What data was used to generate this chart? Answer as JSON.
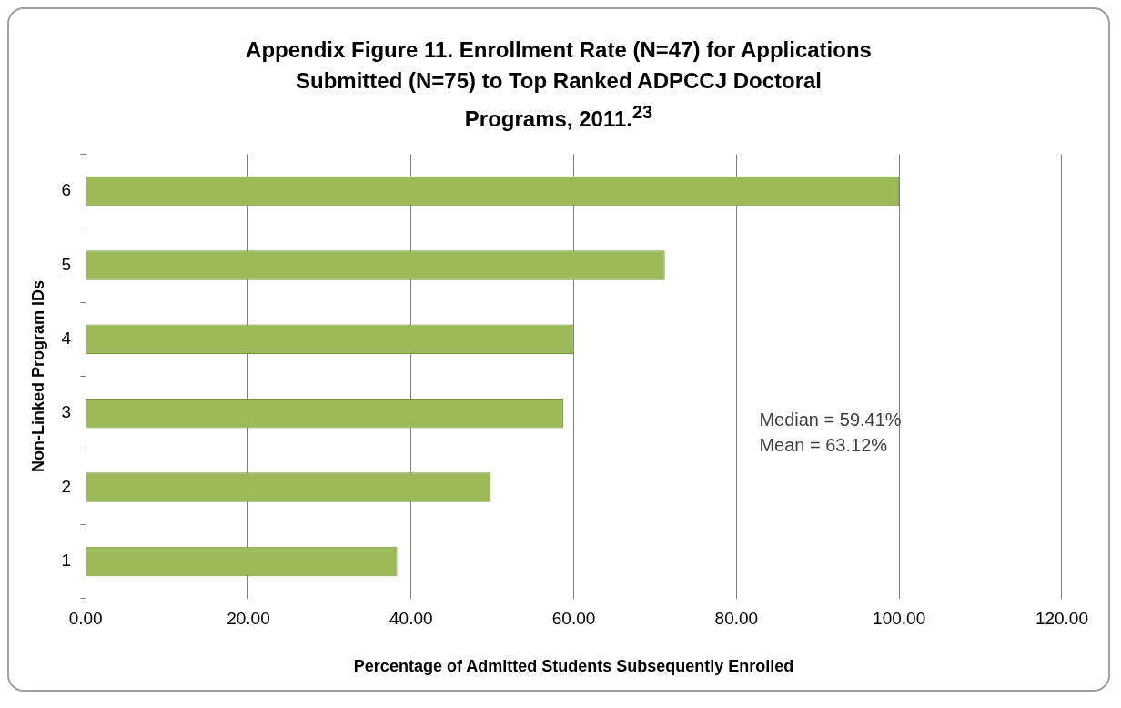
{
  "chart_data": {
    "type": "bar",
    "orientation": "horizontal",
    "title": "Appendix Figure 11.  Enrollment Rate (N=47) for Applications Submitted (N=75) to Top Ranked ADPCCJ Doctoral Programs, 2011.$^{23}$",
    "xlabel": "Percentage of Admitted Students Subsequently Enrolled",
    "ylabel": "Non-Linked Program IDs",
    "categories": [
      "6",
      "5",
      "4",
      "3",
      "2",
      "1"
    ],
    "values": [
      100.0,
      71.2,
      60.0,
      58.7,
      49.8,
      38.3
    ],
    "color": "#9bbb59",
    "xlim": [
      0,
      120
    ],
    "xticks": [
      {
        "value": 0,
        "label": "0.00"
      },
      {
        "value": 20,
        "label": "20.00"
      },
      {
        "value": 40,
        "label": "40.00"
      },
      {
        "value": 60,
        "label": "60.00"
      },
      {
        "value": 80,
        "label": "80.00"
      },
      {
        "value": 100,
        "label": "100.00"
      },
      {
        "value": 120,
        "label": "120.00"
      }
    ],
    "grid": "x",
    "legend": false,
    "annotations": [
      "Median = 59.41%",
      "Mean = 63.12%"
    ]
  }
}
